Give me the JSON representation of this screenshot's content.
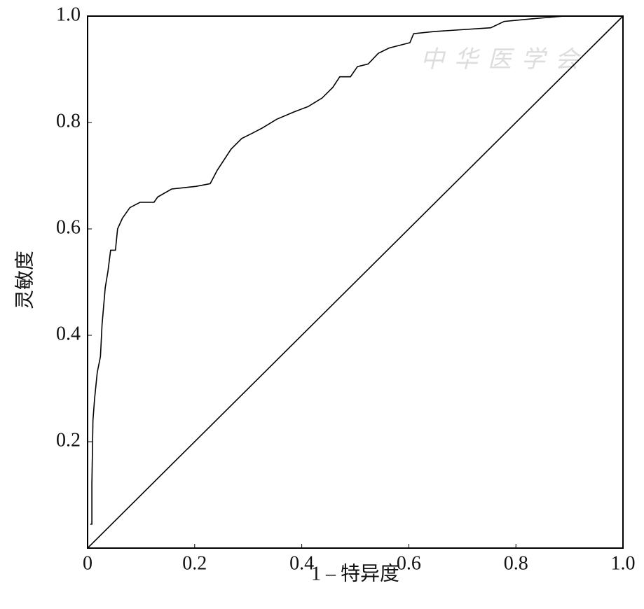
{
  "chart_data": {
    "type": "line",
    "x_label": "1 – 特异度",
    "y_label": "灵敏度",
    "watermark": "中华医学会",
    "xlim": [
      0,
      1
    ],
    "ylim": [
      0,
      1
    ],
    "xticks": [
      0,
      0.2,
      0.4,
      0.6,
      0.8,
      {
        "value": 1,
        "label": "1.0"
      }
    ],
    "yticks": [
      0.2,
      0.4,
      0.6,
      0.8,
      {
        "value": 1,
        "label": "1.0"
      }
    ],
    "grid": false,
    "series": [
      {
        "color": "#000000",
        "x": [
          0.005,
          0.008,
          0.008,
          0.01,
          0.013,
          0.018,
          0.024,
          0.027,
          0.033,
          0.038,
          0.043,
          0.052,
          0.056,
          0.065,
          0.079,
          0.098,
          0.124,
          0.131,
          0.157,
          0.203,
          0.229,
          0.242,
          0.268,
          0.288,
          0.308,
          0.327,
          0.353,
          0.386,
          0.412,
          0.438,
          0.458,
          0.471,
          0.491,
          0.504,
          0.524,
          0.543,
          0.563,
          0.602,
          0.609,
          0.647,
          0.753,
          0.778,
          0.831,
          0.89
        ],
        "values": [
          0.045,
          0.045,
          0.12,
          0.24,
          0.28,
          0.33,
          0.36,
          0.42,
          0.49,
          0.52,
          0.56,
          0.56,
          0.6,
          0.62,
          0.64,
          0.65,
          0.65,
          0.66,
          0.675,
          0.68,
          0.685,
          0.71,
          0.75,
          0.77,
          0.78,
          0.79,
          0.806,
          0.82,
          0.83,
          0.846,
          0.866,
          0.886,
          0.886,
          0.905,
          0.91,
          0.93,
          0.94,
          0.95,
          0.967,
          0.971,
          0.978,
          0.99,
          0.995,
          1.0
        ]
      },
      {
        "color": "#000000",
        "x": [
          0,
          1
        ],
        "values": [
          0,
          1
        ]
      }
    ]
  }
}
